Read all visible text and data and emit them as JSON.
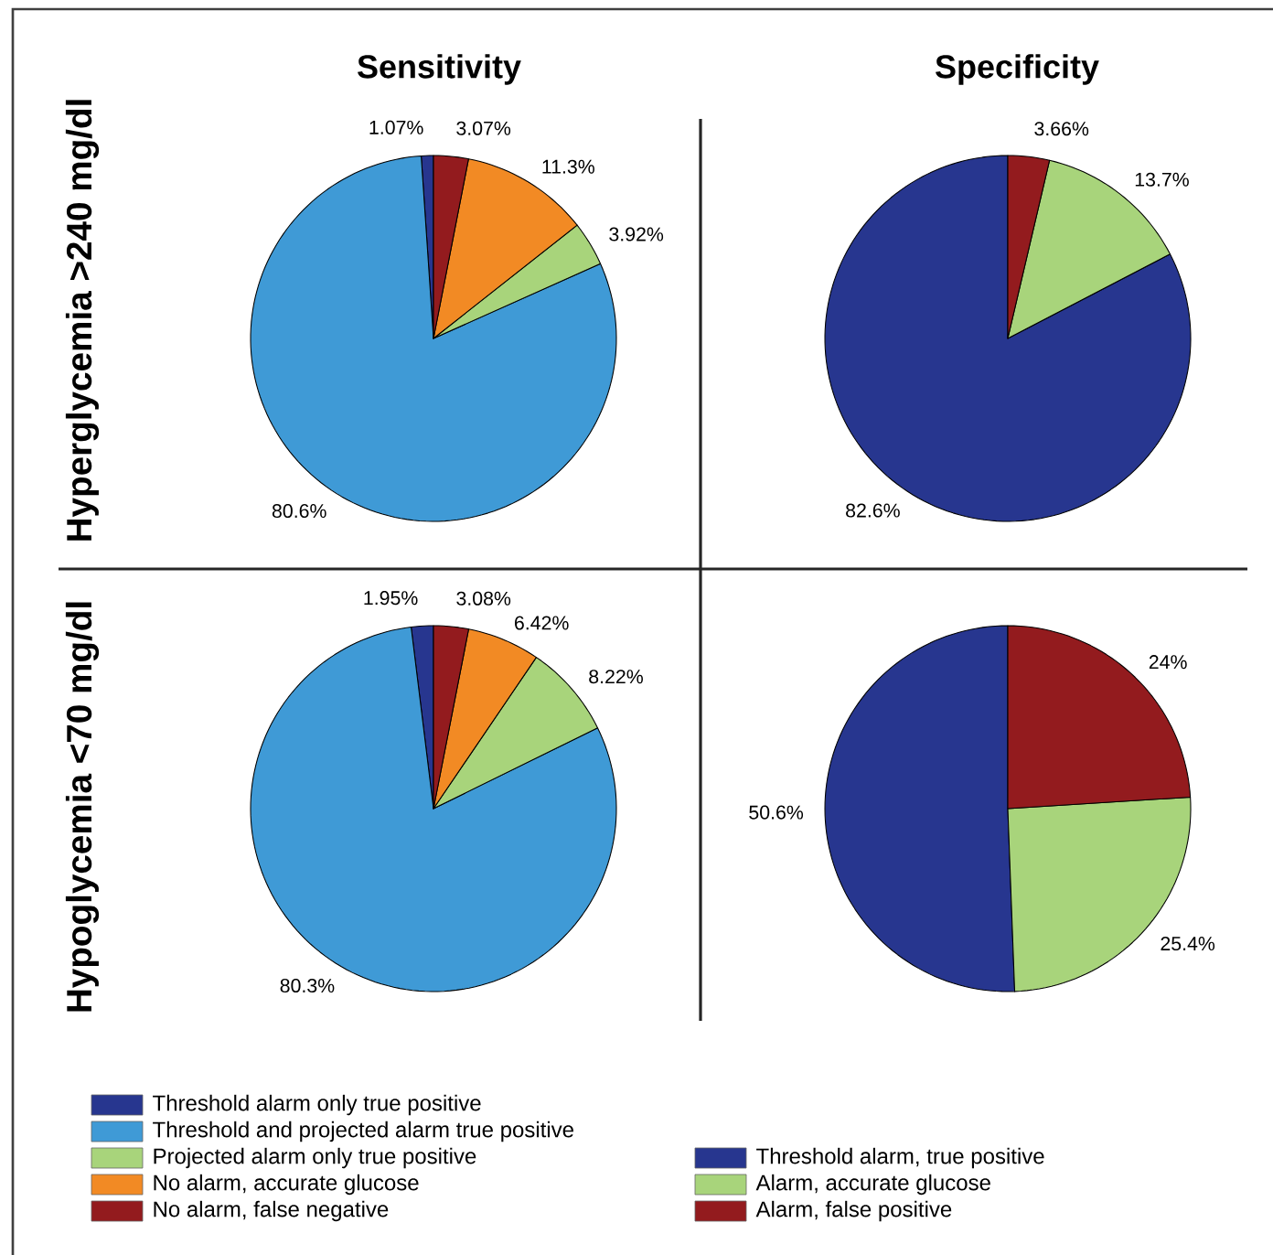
{
  "chart_data": [
    {
      "type": "pie",
      "title": "Sensitivity",
      "ylabel": "Hyperglycemia >240 mg/dl",
      "categories": [
        null,
        null,
        null,
        null,
        null
      ],
      "values": [
        1.07,
        80.6,
        3.92,
        11.3,
        3.07
      ],
      "value_labels": [
        "1.07%",
        "80.6%",
        "3.92%",
        "11.3%",
        "3.07%"
      ],
      "colors": [
        "#27368f",
        "#3f9ad6",
        "#a8d47b",
        "#f28a24",
        "#931b1e"
      ]
    },
    {
      "type": "pie",
      "title": "Specificity",
      "categories": [
        null,
        null,
        null
      ],
      "values": [
        82.6,
        13.7,
        3.66
      ],
      "value_labels": [
        "82.6%",
        "13.7%",
        "3.66%"
      ],
      "colors": [
        "#27368f",
        "#a8d47b",
        "#931b1e"
      ]
    },
    {
      "type": "pie",
      "ylabel": "Hypoglycemia <70 mg/dl",
      "categories": [
        "Threshold alarm only true positive",
        "Threshold and projected alarm true positive",
        "Projected alarm only true positive",
        "No alarm, accurate glucose",
        "No alarm, false negative"
      ],
      "values": [
        1.95,
        80.3,
        8.22,
        6.42,
        3.08
      ],
      "value_labels": [
        "1.95%",
        "80.3%",
        "8.22%",
        "6.42%",
        "3.08%"
      ],
      "colors": [
        "#27368f",
        "#3f9ad6",
        "#a8d47b",
        "#f28a24",
        "#931b1e"
      ],
      "legend": "bottom"
    },
    {
      "type": "pie",
      "categories": [
        "Threshold alarm, true positive",
        "Alarm, accurate glucose",
        "Alarm, false positive"
      ],
      "values": [
        50.6,
        25.4,
        24
      ],
      "value_labels": [
        "50.6%",
        "25.4%",
        "24%"
      ],
      "colors": [
        "#27368f",
        "#a8d47b",
        "#931b1e"
      ],
      "legend": "bottom"
    }
  ]
}
